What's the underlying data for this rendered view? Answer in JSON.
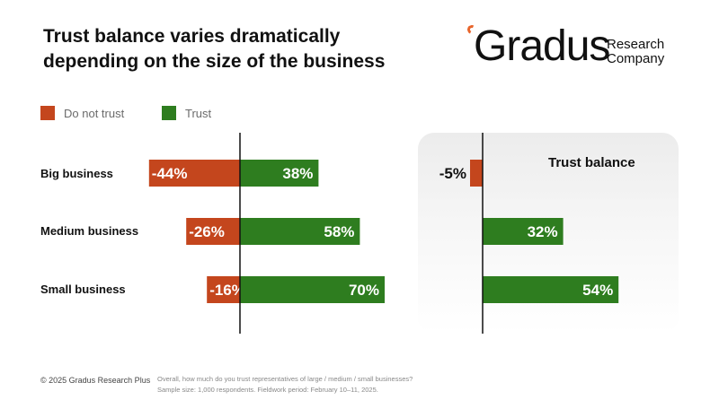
{
  "header": {
    "title_line1": "Trust balance varies dramatically",
    "title_line2": "depending on the size of the business"
  },
  "logo": {
    "word": "Gradus",
    "sub1": "Research",
    "sub2": "Company"
  },
  "colors": {
    "distrust": "#c4461d",
    "trust": "#2e7d1f",
    "accent": "#e8652b"
  },
  "chart_data": [
    {
      "type": "bar",
      "orientation": "horizontal-diverging",
      "categories": [
        "Big business",
        "Medium business",
        "Small business"
      ],
      "series": [
        {
          "name": "Do not trust",
          "values": [
            -44,
            -26,
            -16
          ],
          "labels": [
            "-44%",
            "-26%",
            "-16%"
          ]
        },
        {
          "name": "Trust",
          "values": [
            38,
            58,
            70
          ],
          "labels": [
            "38%",
            "58%",
            "70%"
          ]
        }
      ],
      "legend": [
        "Do not trust",
        "Trust"
      ],
      "xlim": [
        -50,
        70
      ]
    },
    {
      "type": "bar",
      "orientation": "horizontal",
      "title": "Trust balance",
      "categories": [
        "Big business",
        "Medium business",
        "Small business"
      ],
      "values": [
        -5,
        32,
        54
      ],
      "labels": [
        "-5%",
        "32%",
        "54%"
      ]
    }
  ],
  "footer": {
    "copyright": "© 2025 Gradus Research Plus",
    "note_line1": "Overall, how much do you trust representatives of large / medium / small businesses?",
    "note_line2": "Sample size: 1,000 respondents. Fieldwork period: February 10–11, 2025."
  }
}
